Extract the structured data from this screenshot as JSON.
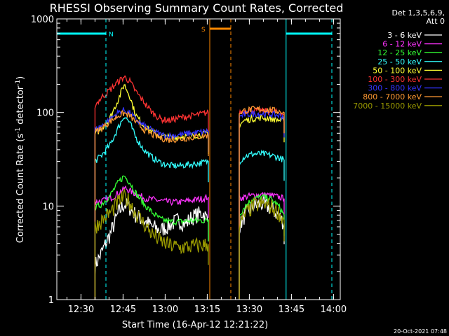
{
  "chart_data": {
    "type": "line",
    "title": "RHESSI Observing Summary Count Rates, Corrected",
    "xlabel": "Start Time (16-Apr-12 12:21:22)",
    "ylabel_parts": [
      "Corrected Count Rate (s",
      "-1",
      " detector",
      "-1",
      ")"
    ],
    "yscale": "log",
    "ylim": [
      1,
      1000
    ],
    "xlim_min": [
      0,
      101
    ],
    "x_unit": "minutes after 12:21:22",
    "x_ticks": [
      {
        "at": 8.6,
        "label": "12:30"
      },
      {
        "at": 23.6,
        "label": "12:45"
      },
      {
        "at": 38.6,
        "label": "13:00"
      },
      {
        "at": 53.6,
        "label": "13:15"
      },
      {
        "at": 68.6,
        "label": "13:30"
      },
      {
        "at": 83.6,
        "label": "13:45"
      },
      {
        "at": 98.6,
        "label": "14:00"
      }
    ],
    "y_ticks": [
      {
        "at": 1,
        "label": "1"
      },
      {
        "at": 10,
        "label": "10"
      },
      {
        "at": 100,
        "label": "100"
      },
      {
        "at": 1000,
        "label": "1000"
      }
    ],
    "legend_header": [
      "Det 1,3,5,6,9,",
      "Att 0"
    ],
    "series": [
      {
        "name": "3 - 6 keV",
        "color": "#ffffff",
        "seg1": [
          [
            13.6,
            2.3
          ],
          [
            16,
            3.2
          ],
          [
            19,
            5
          ],
          [
            22,
            8.5
          ],
          [
            24,
            10.5
          ],
          [
            26,
            9.5
          ],
          [
            28,
            8
          ],
          [
            31,
            7
          ],
          [
            34,
            6
          ],
          [
            37,
            5.5
          ],
          [
            40,
            6.2
          ],
          [
            43,
            7
          ],
          [
            46,
            6.5
          ],
          [
            48,
            7.5
          ],
          [
            50,
            8
          ],
          [
            52,
            8.5
          ],
          [
            54,
            7
          ]
        ],
        "seg2": [
          [
            65,
            6
          ],
          [
            67,
            8
          ],
          [
            70,
            10
          ],
          [
            73,
            10.5
          ],
          [
            76,
            9.5
          ],
          [
            79,
            8
          ],
          [
            81,
            6.5
          ]
        ]
      },
      {
        "name": "6 - 12 keV",
        "color": "#ff33ff",
        "seg1": [
          [
            13.6,
            11
          ],
          [
            17,
            11.5
          ],
          [
            20,
            12.5
          ],
          [
            23,
            14.5
          ],
          [
            24.5,
            15.5
          ],
          [
            26,
            14.5
          ],
          [
            29,
            13
          ],
          [
            32,
            12
          ],
          [
            36,
            11.5
          ],
          [
            40,
            11
          ],
          [
            44,
            11
          ],
          [
            48,
            11.5
          ],
          [
            52,
            12
          ],
          [
            54,
            12.5
          ]
        ],
        "seg2": [
          [
            65,
            12
          ],
          [
            67,
            12.5
          ],
          [
            70,
            13
          ],
          [
            73,
            13.2
          ],
          [
            76,
            13
          ],
          [
            79,
            12.5
          ],
          [
            81,
            12
          ]
        ]
      },
      {
        "name": "12 - 25 keV",
        "color": "#33ff33",
        "seg1": [
          [
            13.6,
            9.5
          ],
          [
            16,
            10.5
          ],
          [
            19,
            13
          ],
          [
            22,
            18
          ],
          [
            24,
            21
          ],
          [
            26,
            18
          ],
          [
            28,
            14
          ],
          [
            31,
            10.5
          ],
          [
            34,
            8.5
          ],
          [
            37,
            7.2
          ],
          [
            40,
            6.8
          ],
          [
            44,
            6.8
          ],
          [
            48,
            7
          ],
          [
            52,
            7
          ],
          [
            54,
            7
          ]
        ],
        "seg2": [
          [
            65,
            8
          ],
          [
            67,
            10
          ],
          [
            70,
            12
          ],
          [
            73,
            12.5
          ],
          [
            76,
            12
          ],
          [
            79,
            10
          ],
          [
            81,
            8
          ]
        ]
      },
      {
        "name": "25 - 50 keV",
        "color": "#33ffff",
        "seg1": [
          [
            13.6,
            30
          ],
          [
            16,
            35
          ],
          [
            19,
            45
          ],
          [
            22,
            70
          ],
          [
            24,
            92
          ],
          [
            26,
            78
          ],
          [
            28,
            55
          ],
          [
            31,
            40
          ],
          [
            34,
            33
          ],
          [
            37,
            29
          ],
          [
            40,
            27
          ],
          [
            44,
            27
          ],
          [
            48,
            28
          ],
          [
            52,
            29
          ],
          [
            54,
            30
          ]
        ],
        "seg2": [
          [
            65,
            30
          ],
          [
            67,
            34
          ],
          [
            70,
            36
          ],
          [
            73,
            36
          ],
          [
            76,
            35
          ],
          [
            79,
            33
          ],
          [
            81,
            31
          ]
        ]
      },
      {
        "name": "50 - 100 keV",
        "color": "#ffff33",
        "seg1": [
          [
            13.6,
            58
          ],
          [
            16,
            68
          ],
          [
            19,
            88
          ],
          [
            22,
            140
          ],
          [
            24,
            200
          ],
          [
            26,
            150
          ],
          [
            28,
            95
          ],
          [
            31,
            72
          ],
          [
            34,
            62
          ],
          [
            37,
            56
          ],
          [
            40,
            54
          ],
          [
            44,
            55
          ],
          [
            48,
            57
          ],
          [
            52,
            58
          ],
          [
            54,
            60
          ]
        ],
        "seg2": [
          [
            65,
            75
          ],
          [
            67,
            82
          ],
          [
            70,
            86
          ],
          [
            73,
            88
          ],
          [
            76,
            86
          ],
          [
            79,
            83
          ],
          [
            81,
            80
          ]
        ]
      },
      {
        "name": "100 - 300 keV",
        "color": "#ff3333",
        "seg1": [
          [
            13.6,
            120
          ],
          [
            16,
            145
          ],
          [
            19,
            175
          ],
          [
            22,
            215
          ],
          [
            24,
            240
          ],
          [
            26,
            215
          ],
          [
            28,
            170
          ],
          [
            31,
            130
          ],
          [
            34,
            100
          ],
          [
            37,
            85
          ],
          [
            40,
            82
          ],
          [
            44,
            88
          ],
          [
            48,
            92
          ],
          [
            52,
            97
          ],
          [
            54,
            100
          ]
        ],
        "seg2": [
          [
            65,
            100
          ],
          [
            67,
            104
          ],
          [
            70,
            105
          ],
          [
            73,
            104
          ],
          [
            76,
            103
          ],
          [
            79,
            100
          ],
          [
            81,
            97
          ]
        ]
      },
      {
        "name": "300 - 800 keV",
        "color": "#3333ff",
        "seg1": [
          [
            13.6,
            65
          ],
          [
            16,
            72
          ],
          [
            19,
            85
          ],
          [
            22,
            100
          ],
          [
            24,
            106
          ],
          [
            26,
            98
          ],
          [
            28,
            85
          ],
          [
            31,
            72
          ],
          [
            34,
            64
          ],
          [
            37,
            58
          ],
          [
            40,
            56
          ],
          [
            44,
            58
          ],
          [
            48,
            60
          ],
          [
            52,
            62
          ],
          [
            54,
            63
          ]
        ],
        "seg2": [
          [
            65,
            90
          ],
          [
            67,
            95
          ],
          [
            70,
            97
          ],
          [
            73,
            97
          ],
          [
            76,
            96
          ],
          [
            79,
            93
          ],
          [
            81,
            90
          ]
        ]
      },
      {
        "name": "800 - 7000 keV",
        "color": "#ff9933",
        "seg1": [
          [
            13.6,
            62
          ],
          [
            16,
            68
          ],
          [
            19,
            80
          ],
          [
            22,
            93
          ],
          [
            24,
            98
          ],
          [
            26,
            92
          ],
          [
            28,
            80
          ],
          [
            31,
            66
          ],
          [
            34,
            58
          ],
          [
            37,
            53
          ],
          [
            40,
            51
          ],
          [
            44,
            52
          ],
          [
            48,
            54
          ],
          [
            52,
            56
          ],
          [
            54,
            57
          ]
        ],
        "seg2": [
          [
            65,
            100
          ],
          [
            67,
            105
          ],
          [
            70,
            108
          ],
          [
            73,
            108
          ],
          [
            76,
            106
          ],
          [
            79,
            103
          ],
          [
            81,
            100
          ]
        ]
      },
      {
        "name": "7000 - 15000 keV",
        "color": "#999900",
        "seg1": [
          [
            13.6,
            6
          ],
          [
            16,
            7
          ],
          [
            19,
            8.5
          ],
          [
            22,
            11
          ],
          [
            24,
            12.5
          ],
          [
            26,
            11
          ],
          [
            28,
            8.5
          ],
          [
            31,
            6.5
          ],
          [
            34,
            5
          ],
          [
            37,
            4.2
          ],
          [
            40,
            3.8
          ],
          [
            44,
            3.6
          ],
          [
            48,
            3.7
          ],
          [
            52,
            3.8
          ],
          [
            54,
            3.9
          ]
        ],
        "seg2": [
          [
            65,
            6
          ],
          [
            67,
            8
          ],
          [
            70,
            10
          ],
          [
            73,
            10.5
          ],
          [
            76,
            10
          ],
          [
            79,
            8.5
          ],
          [
            81,
            7
          ]
        ]
      }
    ],
    "markers": [
      {
        "label": "N",
        "color": "#00ffff",
        "bars": [
          [
            0,
            17.5
          ],
          [
            81.7,
            98
          ]
        ],
        "solid_lines": [
          81.7
        ],
        "dashed_lines": [
          17.5,
          98
        ]
      },
      {
        "label": "S",
        "color": "#ff8800",
        "bars": [
          [
            54.5,
            62
          ]
        ],
        "solid_lines": [
          54.5
        ],
        "dashed_lines": [
          62
        ]
      }
    ],
    "footer_stamp": "20-Oct-2021 07:48"
  }
}
